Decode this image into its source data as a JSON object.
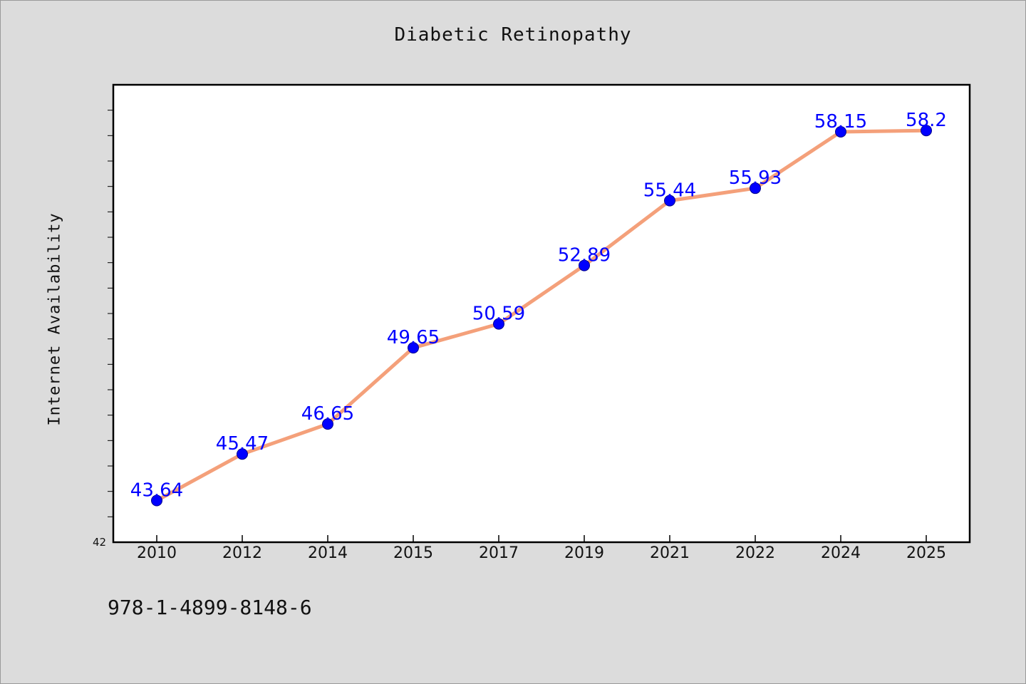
{
  "chart_data": {
    "type": "line",
    "title": "Diabetic Retinopathy",
    "xlabel": "",
    "ylabel": "Internet Availability",
    "categories": [
      "2010",
      "2012",
      "2014",
      "2015",
      "2017",
      "2019",
      "2021",
      "2022",
      "2024",
      "2025"
    ],
    "series": [
      {
        "values": [
          43.64,
          45.47,
          46.65,
          49.65,
          50.59,
          52.89,
          55.44,
          55.93,
          58.15,
          58.2
        ],
        "line_color": "#f4a07a",
        "marker_color": "#0000ff"
      }
    ],
    "data_labels": [
      "43.64",
      "45.47",
      "46.65",
      "49.65",
      "50.59",
      "52.89",
      "55.44",
      "55.93",
      "58.15",
      "58.2"
    ],
    "ylim": [
      42,
      60
    ],
    "y_min_label": "42",
    "grid": false,
    "legend": "none",
    "label_color": "#0000ff",
    "plot_background": "#ffffff",
    "page_background": "#dcdcdc"
  },
  "footer": {
    "isbn": "978-1-4899-8148-6"
  }
}
